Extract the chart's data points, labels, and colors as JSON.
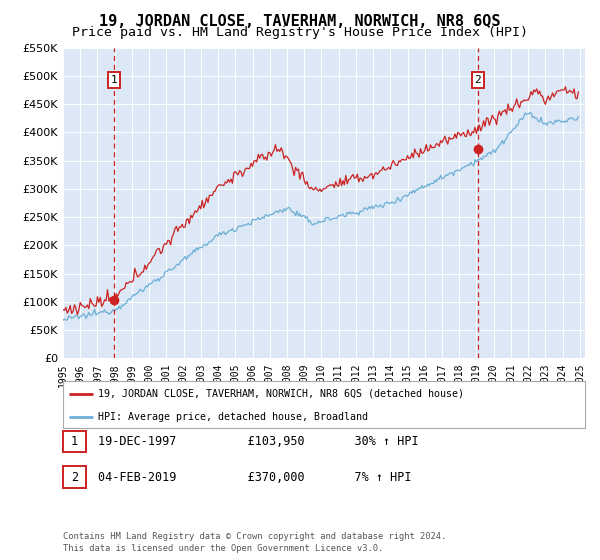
{
  "title": "19, JORDAN CLOSE, TAVERHAM, NORWICH, NR8 6QS",
  "subtitle": "Price paid vs. HM Land Registry's House Price Index (HPI)",
  "legend_line1": "19, JORDAN CLOSE, TAVERHAM, NORWICH, NR8 6QS (detached house)",
  "legend_line2": "HPI: Average price, detached house, Broadland",
  "sale1_date": "19-DEC-1997",
  "sale1_price": 103950,
  "sale1_label": "1",
  "sale1_pct": "30% ↑ HPI",
  "sale2_date": "04-FEB-2019",
  "sale2_price": 370000,
  "sale2_label": "2",
  "sale2_pct": "7% ↑ HPI",
  "footnote": "Contains HM Land Registry data © Crown copyright and database right 2024.\nThis data is licensed under the Open Government Licence v3.0.",
  "hpi_color": "#6baed6",
  "price_color": "#cc2222",
  "sale_vline_color": "#cc2222",
  "background_color": "#dce8f5",
  "ylim_min": 0,
  "ylim_max": 550000,
  "title_fontsize": 11,
  "subtitle_fontsize": 9.5
}
